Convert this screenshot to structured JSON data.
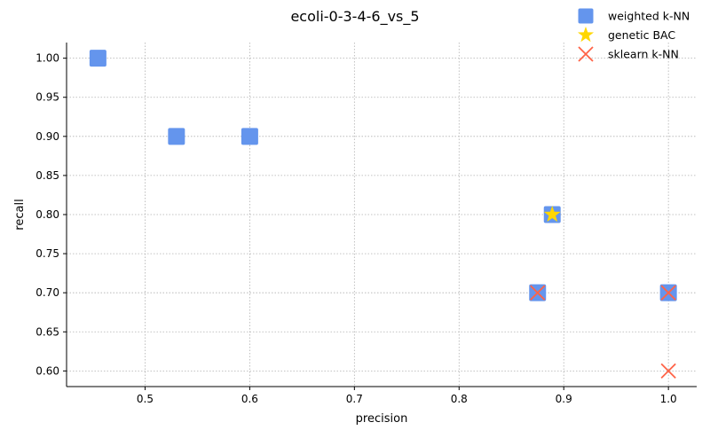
{
  "chart_data": {
    "type": "scatter",
    "title": "ecoli-0-3-4-6_vs_5",
    "xlabel": "precision",
    "ylabel": "recall",
    "xlim": [
      0.425,
      1.027
    ],
    "ylim": [
      0.58,
      1.02
    ],
    "xticks": [
      0.5,
      0.6,
      0.7,
      0.8,
      0.9,
      1.0
    ],
    "xtick_labels": [
      "0.5",
      "0.6",
      "0.7",
      "0.8",
      "0.9",
      "1.0"
    ],
    "yticks": [
      0.6,
      0.65,
      0.7,
      0.75,
      0.8,
      0.85,
      0.9,
      0.95,
      1.0
    ],
    "ytick_labels": [
      "0.60",
      "0.65",
      "0.70",
      "0.75",
      "0.80",
      "0.85",
      "0.90",
      "0.95",
      "1.00"
    ],
    "grid": true,
    "legend_position": "top-right",
    "series": [
      {
        "name": "weighted k-NN",
        "marker": "square",
        "color": "#6495ED",
        "points": [
          [
            0.455,
            1.0
          ],
          [
            0.53,
            0.9
          ],
          [
            0.6,
            0.9
          ],
          [
            0.889,
            0.8
          ],
          [
            0.875,
            0.7
          ],
          [
            1.0,
            0.7
          ]
        ]
      },
      {
        "name": "genetic BAC",
        "marker": "star",
        "color": "#FFD700",
        "points": [
          [
            0.889,
            0.8
          ]
        ]
      },
      {
        "name": "sklearn k-NN",
        "marker": "x",
        "color": "#FF6347",
        "points": [
          [
            0.875,
            0.7
          ],
          [
            1.0,
            0.7
          ],
          [
            1.0,
            0.6
          ]
        ]
      }
    ]
  }
}
